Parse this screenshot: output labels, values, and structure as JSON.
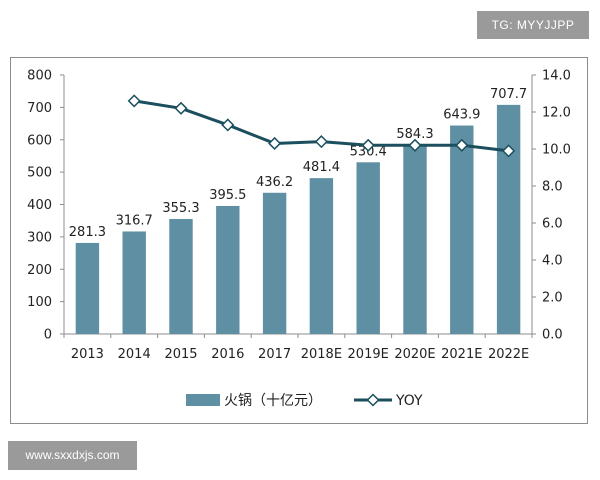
{
  "watermarks": {
    "top": "TG: MYYJJPP",
    "bottom": "www.sxxdxjs.com"
  },
  "chart_data": {
    "type": "bar",
    "categories": [
      "2013",
      "2014",
      "2015",
      "2016",
      "2017",
      "2018E",
      "2019E",
      "2020E",
      "2021E",
      "2022E"
    ],
    "series": [
      {
        "name": "火锅（十亿元）",
        "type": "bar",
        "axis": "left",
        "values": [
          281.3,
          316.7,
          355.3,
          395.5,
          436.2,
          481.4,
          530.4,
          584.3,
          643.9,
          707.7
        ],
        "labels": [
          "281.3",
          "316.7",
          "355.3",
          "395.5",
          "436.2",
          "481.4",
          "530.4",
          "584.3",
          "643.9",
          "707.7"
        ]
      },
      {
        "name": "YOY",
        "type": "line",
        "axis": "right",
        "values": [
          null,
          12.6,
          12.2,
          11.3,
          10.3,
          10.4,
          10.2,
          10.2,
          10.2,
          9.9
        ]
      }
    ],
    "yleft": {
      "lim": [
        0,
        800
      ],
      "ticks": [
        "0",
        "100",
        "200",
        "300",
        "400",
        "500",
        "600",
        "700",
        "800"
      ]
    },
    "yright": {
      "lim": [
        0,
        14
      ],
      "ticks": [
        "0.0",
        "2.0",
        "4.0",
        "6.0",
        "8.0",
        "10.0",
        "12.0",
        "14.0"
      ]
    },
    "grid": false,
    "legend_position": "bottom",
    "colors": {
      "bar": "#5e8fa3",
      "line": "#1b4f5e",
      "marker_fill": "#ffffff",
      "axis": "#8c8c8c",
      "text": "#222222"
    }
  }
}
